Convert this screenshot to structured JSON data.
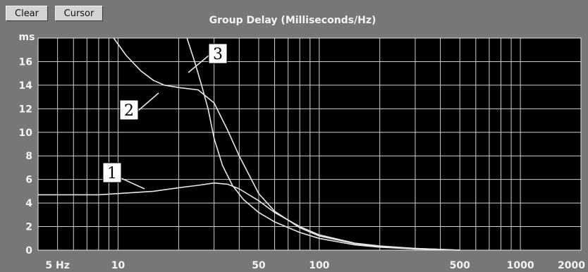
{
  "toolbar": {
    "clear_label": "Clear",
    "cursor_label": "Cursor"
  },
  "chart_data": {
    "type": "line",
    "title": "Group Delay (Milliseconds/Hz)",
    "ylabel": "ms",
    "xlabel": "",
    "x_scale": "log",
    "xlim": [
      4,
      2000
    ],
    "ylim": [
      0,
      18
    ],
    "grid": true,
    "x_ticks": [
      {
        "value": 5,
        "label": "5 Hz"
      },
      {
        "value": 10,
        "label": "10"
      },
      {
        "value": 50,
        "label": "50"
      },
      {
        "value": 100,
        "label": "100"
      },
      {
        "value": 500,
        "label": "500"
      },
      {
        "value": 1000,
        "label": "1000"
      },
      {
        "value": 2000,
        "label": "2000"
      }
    ],
    "y_ticks": [
      0,
      2,
      4,
      6,
      8,
      10,
      12,
      14,
      16
    ],
    "series": [
      {
        "name": "1",
        "x": [
          4,
          8,
          10,
          15,
          20,
          25,
          30,
          35,
          40,
          50,
          60,
          80,
          100,
          150,
          200,
          300,
          500
        ],
        "y": [
          4.7,
          4.7,
          4.8,
          5.0,
          5.3,
          5.5,
          5.7,
          5.6,
          5.2,
          4.2,
          3.2,
          2.0,
          1.3,
          0.6,
          0.35,
          0.15,
          0.0
        ]
      },
      {
        "name": "2",
        "x": [
          9.5,
          11,
          13,
          15,
          17,
          20,
          25,
          30,
          35,
          40,
          50,
          60,
          80,
          100,
          150,
          200,
          300,
          500
        ],
        "y": [
          18,
          16.5,
          15.2,
          14.4,
          14.0,
          13.8,
          13.6,
          12.5,
          10.2,
          8.0,
          4.8,
          3.3,
          1.9,
          1.2,
          0.55,
          0.3,
          0.15,
          0.0
        ]
      },
      {
        "name": "3",
        "x": [
          22,
          24,
          26,
          28,
          30,
          33,
          37,
          42,
          50,
          60,
          80,
          100,
          150,
          200,
          300,
          500
        ],
        "y": [
          18,
          16,
          14,
          12,
          9.5,
          7.2,
          5.5,
          4.3,
          3.2,
          2.4,
          1.5,
          1.0,
          0.45,
          0.25,
          0.1,
          0.0
        ]
      }
    ],
    "annotations": [
      "1",
      "2",
      "3"
    ]
  }
}
